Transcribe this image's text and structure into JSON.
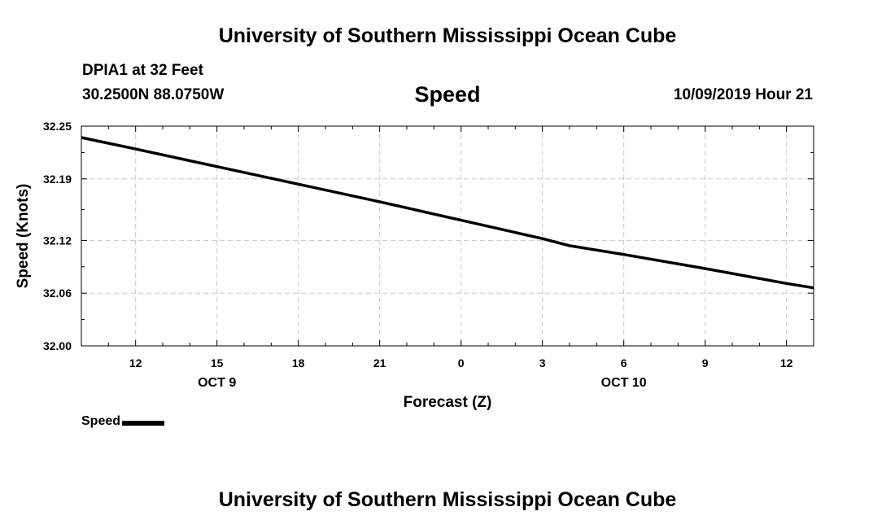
{
  "header": {
    "title": "University of Southern Mississippi Ocean Cube",
    "station": "DPIA1 at 32 Feet",
    "coordinates": "30.2500N 88.0750W",
    "timestamp": "10/09/2019 Hour 21"
  },
  "footer": {
    "title": "University of Southern Mississippi Ocean Cube"
  },
  "chart_data": {
    "type": "line",
    "title": "Speed",
    "xlabel": "Forecast (Z)",
    "ylabel": "Speed (Knots)",
    "xlim": [
      10,
      37
    ],
    "ylim": [
      32.0,
      32.25
    ],
    "yticks": [
      32.0,
      32.06,
      32.12,
      32.19,
      32.25
    ],
    "ytick_labels": [
      "32.00",
      "32.06",
      "32.12",
      "32.19",
      "32.25"
    ],
    "xticks": [
      12,
      15,
      18,
      21,
      24,
      27,
      30,
      33,
      36
    ],
    "xtick_labels": [
      "12",
      "15",
      "18",
      "21",
      "0",
      "3",
      "6",
      "9",
      "12"
    ],
    "date_labels": [
      {
        "x": 15,
        "label": "OCT 9"
      },
      {
        "x": 30,
        "label": "OCT 10"
      }
    ],
    "grid": true,
    "series": [
      {
        "name": "Speed",
        "color": "#000000",
        "x": [
          10,
          12,
          15,
          18,
          21,
          24,
          27,
          28,
          30,
          33,
          36,
          37
        ],
        "y": [
          32.237,
          32.224,
          32.204,
          32.184,
          32.164,
          32.143,
          32.122,
          32.114,
          32.104,
          32.088,
          32.071,
          32.066
        ]
      }
    ],
    "legend": {
      "label": "Speed",
      "placement": "bottom-left"
    }
  }
}
